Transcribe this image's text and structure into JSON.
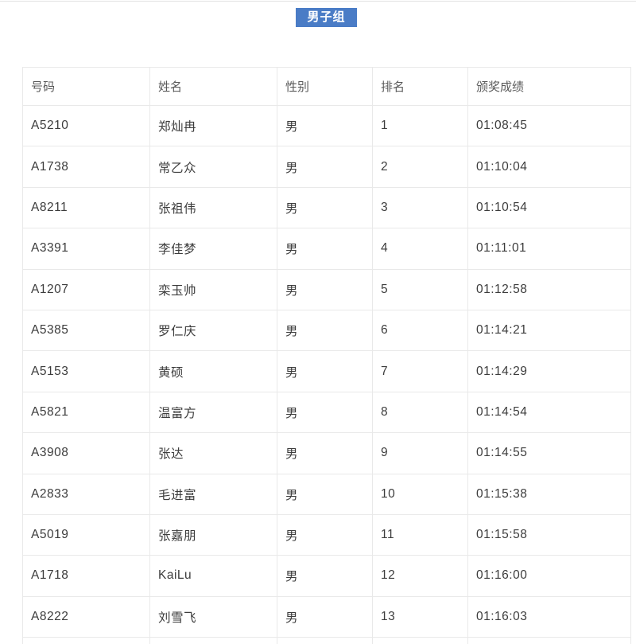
{
  "group_badge": "男子组",
  "table": {
    "columns": [
      "号码",
      "姓名",
      "性别",
      "排名",
      "颁奖成绩"
    ],
    "column_keys": [
      "number",
      "name",
      "gender",
      "rank",
      "result"
    ],
    "rows": [
      {
        "number": "A5210",
        "name": "郑灿冉",
        "gender": "男",
        "rank": "1",
        "result": "01:08:45"
      },
      {
        "number": "A1738",
        "name": "常乙众",
        "gender": "男",
        "rank": "2",
        "result": "01:10:04"
      },
      {
        "number": "A8211",
        "name": "张祖伟",
        "gender": "男",
        "rank": "3",
        "result": "01:10:54"
      },
      {
        "number": "A3391",
        "name": "李佳梦",
        "gender": "男",
        "rank": "4",
        "result": "01:11:01"
      },
      {
        "number": "A1207",
        "name": "栾玉帅",
        "gender": "男",
        "rank": "5",
        "result": "01:12:58"
      },
      {
        "number": "A5385",
        "name": "罗仁庆",
        "gender": "男",
        "rank": "6",
        "result": "01:14:21"
      },
      {
        "number": "A5153",
        "name": "黄硕",
        "gender": "男",
        "rank": "7",
        "result": "01:14:29"
      },
      {
        "number": "A5821",
        "name": "温富方",
        "gender": "男",
        "rank": "8",
        "result": "01:14:54"
      },
      {
        "number": "A3908",
        "name": "张达",
        "gender": "男",
        "rank": "9",
        "result": "01:14:55"
      },
      {
        "number": "A2833",
        "name": "毛进富",
        "gender": "男",
        "rank": "10",
        "result": "01:15:38"
      },
      {
        "number": "A5019",
        "name": "张嘉朋",
        "gender": "男",
        "rank": "11",
        "result": "01:15:58"
      },
      {
        "number": "A1718",
        "name": "KaiLu",
        "gender": "男",
        "rank": "12",
        "result": "01:16:00"
      },
      {
        "number": "A8222",
        "name": "刘雪飞",
        "gender": "男",
        "rank": "13",
        "result": "01:16:03"
      }
    ],
    "colors": {
      "badge_background": "#4a7cc6",
      "badge_text": "#ffffff",
      "grid_border": "#e9e9e9",
      "header_text": "#595959",
      "cell_text": "#3c3c3c"
    }
  }
}
